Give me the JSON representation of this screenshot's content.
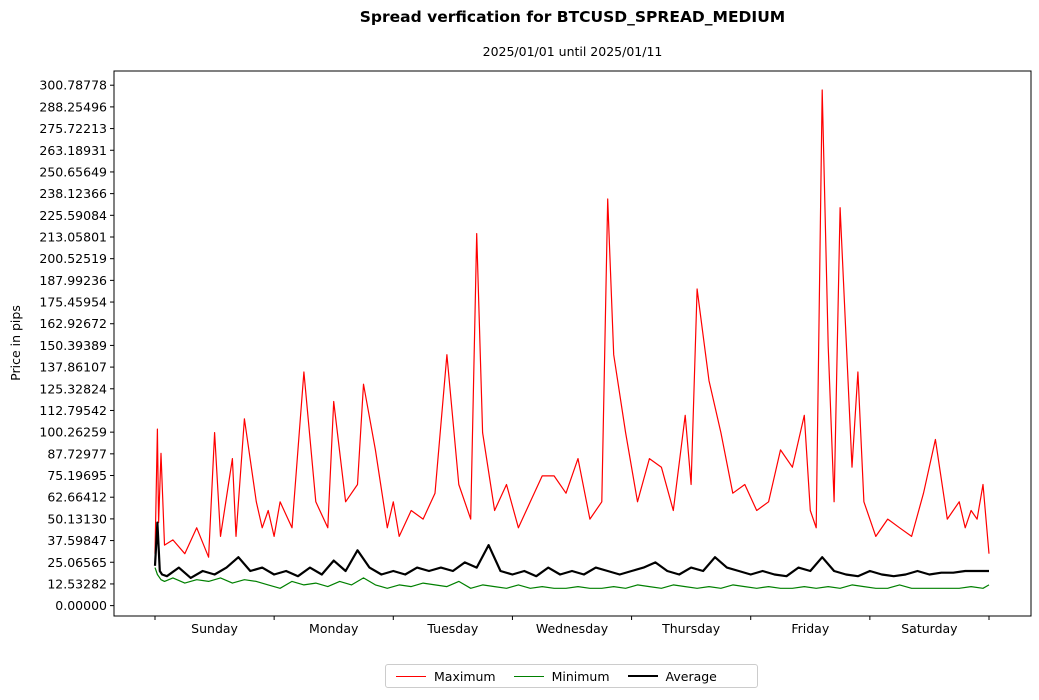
{
  "chart_data": {
    "type": "line",
    "title": "Spread verfication for BTCUSD_SPREAD_MEDIUM",
    "subtitle": "2025/01/01 until 2025/01/11",
    "xlabel": "",
    "ylabel": "Price in pips",
    "categories": [
      "Sunday",
      "Monday",
      "Tuesday",
      "Wednesday",
      "Thursday",
      "Friday",
      "Saturday"
    ],
    "xlim": [
      0,
      7
    ],
    "ylim": [
      -6.0,
      309.0
    ],
    "yticks": [
      "0.00000",
      "12.53282",
      "25.06565",
      "37.59847",
      "50.13130",
      "62.66412",
      "75.19695",
      "87.72977",
      "100.26259",
      "112.79542",
      "125.32824",
      "137.86107",
      "150.39389",
      "162.92672",
      "175.45954",
      "187.99236",
      "200.52519",
      "213.05801",
      "225.59084",
      "238.12366",
      "250.65649",
      "263.18931",
      "275.72213",
      "288.25496",
      "300.78778"
    ],
    "ytick_values": [
      0,
      12.53282,
      25.06565,
      37.59847,
      50.1313,
      62.66412,
      75.19695,
      87.72977,
      100.26259,
      112.79542,
      125.32824,
      137.86107,
      150.39389,
      162.92672,
      175.45954,
      187.99236,
      200.52519,
      213.05801,
      225.59084,
      238.12366,
      250.65649,
      263.18931,
      275.72213,
      288.25496,
      300.78778
    ],
    "series_colors": {
      "Maximum": "#ff0000",
      "Minimum": "#008000",
      "Average": "#000000"
    },
    "series": [
      {
        "name": "Maximum",
        "x": [
          0.0,
          0.02,
          0.03,
          0.05,
          0.08,
          0.15,
          0.25,
          0.35,
          0.45,
          0.5,
          0.55,
          0.65,
          0.68,
          0.75,
          0.85,
          0.9,
          0.95,
          1.0,
          1.05,
          1.15,
          1.25,
          1.35,
          1.45,
          1.5,
          1.6,
          1.7,
          1.75,
          1.85,
          1.95,
          2.0,
          2.05,
          2.15,
          2.25,
          2.35,
          2.45,
          2.55,
          2.65,
          2.7,
          2.75,
          2.85,
          2.95,
          3.05,
          3.15,
          3.25,
          3.35,
          3.45,
          3.55,
          3.65,
          3.75,
          3.8,
          3.85,
          3.95,
          4.05,
          4.15,
          4.25,
          4.35,
          4.45,
          4.5,
          4.55,
          4.65,
          4.75,
          4.85,
          4.95,
          5.05,
          5.15,
          5.25,
          5.35,
          5.45,
          5.5,
          5.55,
          5.6,
          5.65,
          5.7,
          5.75,
          5.85,
          5.9,
          5.95,
          6.05,
          6.15,
          6.25,
          6.35,
          6.45,
          6.55,
          6.65,
          6.75,
          6.8,
          6.85,
          6.9,
          6.95,
          7.0
        ],
        "values": [
          30,
          102,
          48,
          88,
          35,
          38,
          30,
          45,
          28,
          100,
          40,
          85,
          40,
          108,
          60,
          45,
          55,
          40,
          60,
          45,
          135,
          60,
          45,
          118,
          60,
          70,
          128,
          90,
          45,
          60,
          40,
          55,
          50,
          65,
          145,
          70,
          50,
          215,
          100,
          55,
          70,
          45,
          60,
          75,
          75,
          65,
          85,
          50,
          60,
          235,
          145,
          100,
          60,
          85,
          80,
          55,
          110,
          70,
          183,
          130,
          100,
          65,
          70,
          55,
          60,
          90,
          80,
          110,
          55,
          45,
          298,
          150,
          60,
          230,
          80,
          135,
          60,
          40,
          50,
          45,
          40,
          65,
          96,
          50,
          60,
          45,
          55,
          50,
          70,
          30
        ]
      },
      {
        "name": "Minimum",
        "x": [
          0.0,
          0.02,
          0.05,
          0.08,
          0.15,
          0.25,
          0.35,
          0.45,
          0.55,
          0.65,
          0.75,
          0.85,
          0.95,
          1.05,
          1.15,
          1.25,
          1.35,
          1.45,
          1.55,
          1.65,
          1.75,
          1.85,
          1.95,
          2.05,
          2.15,
          2.25,
          2.35,
          2.45,
          2.55,
          2.65,
          2.75,
          2.85,
          2.95,
          3.05,
          3.15,
          3.25,
          3.35,
          3.45,
          3.55,
          3.65,
          3.75,
          3.85,
          3.95,
          4.05,
          4.15,
          4.25,
          4.35,
          4.45,
          4.55,
          4.65,
          4.75,
          4.85,
          4.95,
          5.05,
          5.15,
          5.25,
          5.35,
          5.45,
          5.55,
          5.65,
          5.75,
          5.85,
          5.95,
          6.05,
          6.15,
          6.25,
          6.35,
          6.45,
          6.55,
          6.65,
          6.75,
          6.85,
          6.95,
          7.0
        ],
        "values": [
          22,
          18,
          15,
          14,
          16,
          13,
          15,
          14,
          16,
          13,
          15,
          14,
          12,
          10,
          14,
          12,
          13,
          11,
          14,
          12,
          16,
          12,
          10,
          12,
          11,
          13,
          12,
          11,
          14,
          10,
          12,
          11,
          10,
          12,
          10,
          11,
          10,
          10,
          11,
          10,
          10,
          11,
          10,
          12,
          11,
          10,
          12,
          11,
          10,
          11,
          10,
          12,
          11,
          10,
          11,
          10,
          10,
          11,
          10,
          11,
          10,
          12,
          11,
          10,
          10,
          12,
          10,
          10,
          10,
          10,
          10,
          11,
          10,
          12
        ]
      },
      {
        "name": "Average",
        "x": [
          0.0,
          0.02,
          0.04,
          0.06,
          0.1,
          0.2,
          0.3,
          0.4,
          0.5,
          0.6,
          0.7,
          0.8,
          0.9,
          1.0,
          1.1,
          1.2,
          1.3,
          1.4,
          1.5,
          1.6,
          1.7,
          1.8,
          1.9,
          2.0,
          2.1,
          2.2,
          2.3,
          2.4,
          2.5,
          2.6,
          2.7,
          2.8,
          2.9,
          3.0,
          3.1,
          3.2,
          3.3,
          3.4,
          3.5,
          3.6,
          3.7,
          3.8,
          3.9,
          4.0,
          4.1,
          4.2,
          4.3,
          4.4,
          4.5,
          4.6,
          4.7,
          4.8,
          4.9,
          5.0,
          5.1,
          5.2,
          5.3,
          5.4,
          5.5,
          5.6,
          5.7,
          5.8,
          5.9,
          6.0,
          6.1,
          6.2,
          6.3,
          6.4,
          6.5,
          6.6,
          6.7,
          6.8,
          6.9,
          7.0
        ],
        "values": [
          23,
          48,
          20,
          18,
          17,
          22,
          16,
          20,
          18,
          22,
          28,
          20,
          22,
          18,
          20,
          17,
          22,
          18,
          26,
          20,
          32,
          22,
          18,
          20,
          18,
          22,
          20,
          22,
          20,
          25,
          22,
          35,
          20,
          18,
          20,
          17,
          22,
          18,
          20,
          18,
          22,
          20,
          18,
          20,
          22,
          25,
          20,
          18,
          22,
          20,
          28,
          22,
          20,
          18,
          20,
          18,
          17,
          22,
          20,
          28,
          20,
          18,
          17,
          20,
          18,
          17,
          18,
          20,
          18,
          19,
          19,
          20,
          20,
          20
        ]
      }
    ],
    "legend": {
      "position": "bottom-center",
      "entries": [
        "Maximum",
        "Minimum",
        "Average"
      ]
    },
    "grid": false
  }
}
